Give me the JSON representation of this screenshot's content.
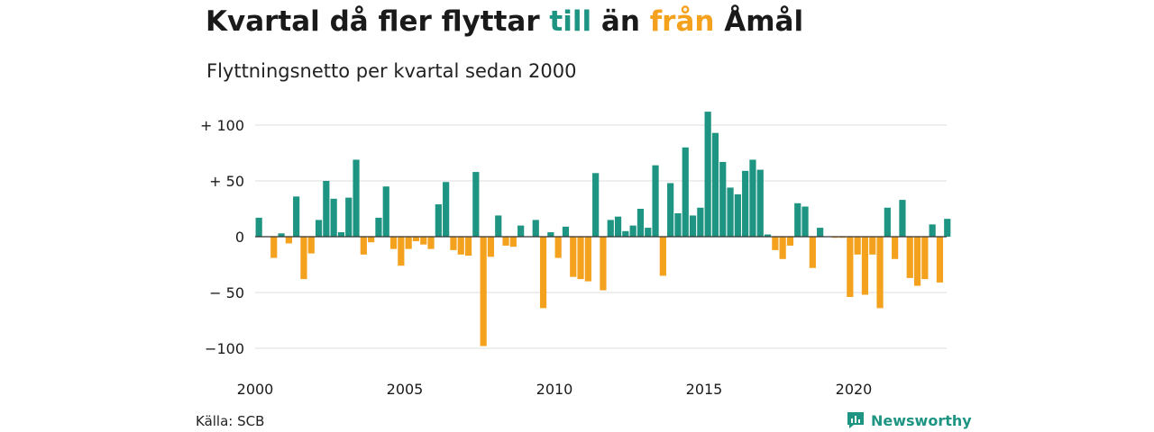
{
  "header": {
    "title_part1": "Kvartal då fler flyttar ",
    "title_till": "till",
    "title_mid": " än ",
    "title_fran": "från",
    "title_end": " Åmål",
    "subtitle": "Flyttningsnetto per kvartal sedan 2000"
  },
  "colors": {
    "positive": "#1e9482",
    "negative": "#f4a11d",
    "grid": "#dcdcdc",
    "zero_line": "#333333"
  },
  "footer": {
    "source": "Källa: SCB",
    "brand": "Newsworthy",
    "brand_icon": "newsworthy-logo-icon"
  },
  "chart_data": {
    "type": "bar",
    "title": "Kvartal då fler flyttar till än från Åmål",
    "subtitle": "Flyttningsnetto per kvartal sedan 2000",
    "ylim": [
      -110,
      118
    ],
    "yticks": [
      {
        "value": 100,
        "label": "+ 100"
      },
      {
        "value": 50,
        "label": "+  50"
      },
      {
        "value": 0,
        "label": "0"
      },
      {
        "value": -50,
        "label": "− 50"
      },
      {
        "value": -100,
        "label": "−100"
      }
    ],
    "xticks": [
      "2000",
      "2005",
      "2010",
      "2015",
      "2020"
    ],
    "grid": true,
    "start_year": 2000,
    "values": [
      17,
      0,
      -19,
      3,
      -6,
      36,
      -38,
      -15,
      15,
      50,
      34,
      4,
      35,
      69,
      -16,
      -5,
      17,
      45,
      -11,
      -26,
      -11,
      -4,
      -7,
      -11,
      29,
      49,
      -12,
      -16,
      -17,
      58,
      -98,
      -18,
      19,
      -8,
      -9,
      10,
      0,
      15,
      -64,
      4,
      -19,
      9,
      -36,
      -38,
      -40,
      57,
      -48,
      15,
      18,
      5,
      10,
      25,
      8,
      64,
      -35,
      48,
      21,
      80,
      19,
      26,
      112,
      93,
      67,
      44,
      38,
      59,
      69,
      60,
      2,
      -12,
      -20,
      -8,
      30,
      27,
      -28,
      8,
      0,
      -1,
      -1,
      -54,
      -16,
      -52,
      -16,
      -64,
      26,
      -20,
      33,
      -37,
      -44,
      -38,
      11,
      -41,
      16
    ]
  }
}
